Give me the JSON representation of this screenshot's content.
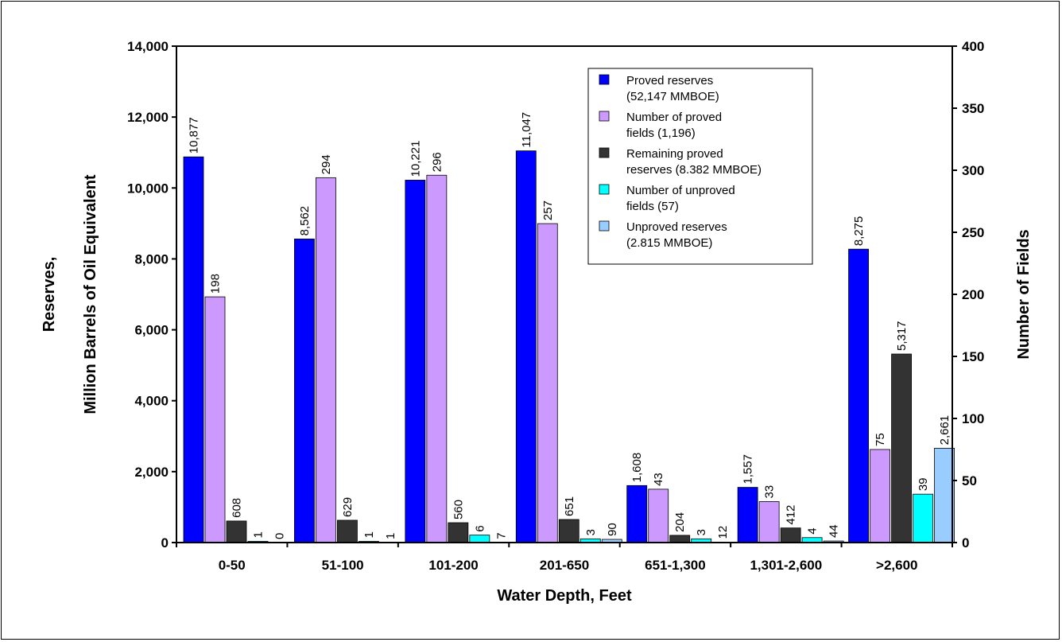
{
  "chart_data": {
    "type": "bar",
    "title": "",
    "xlabel": "Water Depth, Feet",
    "ylabel": [
      "Reserves,",
      "Million Barrels of Oil Equivalent"
    ],
    "y2label": "Number of Fields",
    "ylim": [
      0,
      14000
    ],
    "y2lim": [
      0,
      400
    ],
    "yticks": [
      "0",
      "2,000",
      "4,000",
      "6,000",
      "8,000",
      "10,000",
      "12,000",
      "14,000"
    ],
    "y2ticks": [
      "0",
      "50",
      "100",
      "150",
      "200",
      "250",
      "300",
      "350",
      "400"
    ],
    "categories": [
      "0-50",
      "51-100",
      "101-200",
      "201-650",
      "651-1,300",
      "1,301-2,600",
      ">2,600"
    ],
    "legend_position": "top-right",
    "grid": false,
    "series": [
      {
        "name": [
          "Proved reserves",
          "(52,147 MMBOE)"
        ],
        "axis": "left",
        "color": "#0000ff",
        "values": [
          10877,
          8562,
          10221,
          11047,
          1608,
          1557,
          8275
        ],
        "labels": [
          "10,877",
          "8,562",
          "10,221",
          "11,047",
          "1,608",
          "1,557",
          "8,275"
        ]
      },
      {
        "name": [
          "Number of proved",
          "fields (1,196)"
        ],
        "axis": "right",
        "color": "#cc99ff",
        "values": [
          198,
          294,
          296,
          257,
          43,
          33,
          75
        ],
        "labels": [
          "198",
          "294",
          "296",
          "257",
          "43",
          "33",
          "75"
        ]
      },
      {
        "name": [
          "Remaining proved",
          "reserves (8.382 MMBOE)"
        ],
        "axis": "left",
        "color": "#333333",
        "values": [
          608,
          629,
          560,
          651,
          204,
          412,
          5317
        ],
        "labels": [
          "608",
          "629",
          "560",
          "651",
          "204",
          "412",
          "5,317"
        ]
      },
      {
        "name": [
          "Number of unproved",
          "fields (57)"
        ],
        "axis": "right",
        "color": "#00ffff",
        "values": [
          1,
          1,
          6,
          3,
          3,
          4,
          39
        ],
        "labels": [
          "1",
          "1",
          "6",
          "3",
          "3",
          "4",
          "39"
        ]
      },
      {
        "name": [
          "Unproved reserves",
          "(2.815 MMBOE)"
        ],
        "axis": "left",
        "color": "#99ccff",
        "values": [
          0,
          1,
          7,
          90,
          12,
          44,
          2661
        ],
        "labels": [
          "0",
          "1",
          "7",
          "90",
          "12",
          "44",
          "2,661"
        ]
      }
    ]
  }
}
